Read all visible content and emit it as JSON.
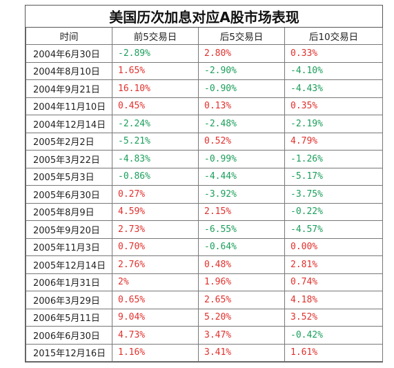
{
  "title": "美国历次加息对应A股市场表现",
  "headers": [
    "时间",
    "前5交易日",
    "后5交易日",
    "后10交易日"
  ],
  "colors": {
    "positive": "#e0302c",
    "negative": "#1a9e5a"
  },
  "rows": [
    {
      "date": "2004年6月30日",
      "pre5": "-2.89%",
      "post5": "2.80%",
      "post10": "0.33%"
    },
    {
      "date": "2004年8月10日",
      "pre5": "1.65%",
      "post5": "-2.90%",
      "post10": "-4.10%"
    },
    {
      "date": "2004年9月21日",
      "pre5": "16.10%",
      "post5": "-0.90%",
      "post10": "-4.43%"
    },
    {
      "date": "2004年11月10日",
      "pre5": "0.45%",
      "post5": "0.13%",
      "post10": "0.35%"
    },
    {
      "date": "2004年12月14日",
      "pre5": "-2.24%",
      "post5": "-2.48%",
      "post10": "-2.19%"
    },
    {
      "date": "2005年2月2日",
      "pre5": "-5.21%",
      "post5": "0.52%",
      "post10": "4.79%"
    },
    {
      "date": "2005年3月22日",
      "pre5": "-4.83%",
      "post5": "-0.99%",
      "post10": "-1.26%"
    },
    {
      "date": "2005年5月3日",
      "pre5": "-0.86%",
      "post5": "-4.44%",
      "post10": "-5.17%"
    },
    {
      "date": "2005年6月30日",
      "pre5": "0.27%",
      "post5": "-3.92%",
      "post10": "-3.75%"
    },
    {
      "date": "2005年8月9日",
      "pre5": "4.59%",
      "post5": "2.15%",
      "post10": "-0.22%"
    },
    {
      "date": "2005年9月20日",
      "pre5": "2.73%",
      "post5": "-6.55%",
      "post10": "-4.57%"
    },
    {
      "date": "2005年11月3日",
      "pre5": "0.70%",
      "post5": "-0.64%",
      "post10": "0.00%"
    },
    {
      "date": "2005年12月14日",
      "pre5": "2.76%",
      "post5": "0.48%",
      "post10": "2.81%"
    },
    {
      "date": "2006年1月31日",
      "pre5": "2%",
      "post5": "1.96%",
      "post10": "0.74%"
    },
    {
      "date": "2006年3月29日",
      "pre5": "0.65%",
      "post5": "2.65%",
      "post10": "4.18%"
    },
    {
      "date": "2006年5月11日",
      "pre5": "9.04%",
      "post5": "5.20%",
      "post10": "3.52%"
    },
    {
      "date": "2006年6月30日",
      "pre5": "4.73%",
      "post5": "3.47%",
      "post10": "-0.42%"
    },
    {
      "date": "2015年12月16日",
      "pre5": "1.16%",
      "post5": "3.41%",
      "post10": "1.61%"
    }
  ]
}
